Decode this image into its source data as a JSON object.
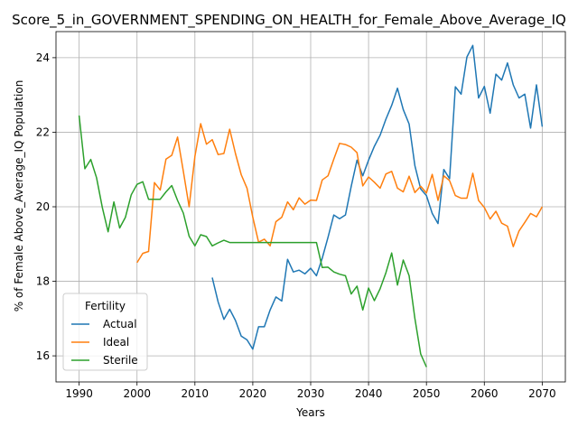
{
  "chart_data": {
    "type": "line",
    "title": "Score_5_in_GOVERNMENT_SPENDING_ON_HEALTH_for_Female_Above_Average_IQ",
    "xlabel": "Years",
    "ylabel": "% of Female Above_Average_IQ Population",
    "xlim": [
      1986,
      2074
    ],
    "ylim": [
      15.3,
      24.7
    ],
    "xticks": [
      1990,
      2000,
      2010,
      2020,
      2030,
      2040,
      2050,
      2060,
      2070
    ],
    "yticks": [
      16,
      18,
      20,
      22,
      24
    ],
    "grid": true,
    "legend": {
      "title": "Fertility",
      "position": "lower left"
    },
    "series": [
      {
        "name": "Actual",
        "color": "#1f77b4",
        "x": [
          2013,
          2014,
          2015,
          2016,
          2017,
          2018,
          2019,
          2020,
          2021,
          2022,
          2023,
          2024,
          2025,
          2026,
          2027,
          2028,
          2029,
          2030,
          2031,
          2032,
          2033,
          2034,
          2035,
          2036,
          2037,
          2038,
          2039,
          2040,
          2041,
          2042,
          2043,
          2044,
          2045,
          2046,
          2047,
          2048,
          2049,
          2050,
          2051,
          2052,
          2053,
          2054,
          2055,
          2056,
          2057,
          2058,
          2059,
          2060,
          2061,
          2062,
          2063,
          2064,
          2065,
          2066,
          2067,
          2068,
          2069,
          2070
        ],
        "y": [
          18.1,
          17.45,
          16.98,
          17.25,
          16.95,
          16.53,
          16.43,
          16.18,
          16.78,
          16.78,
          17.23,
          17.58,
          17.47,
          18.59,
          18.25,
          18.3,
          18.2,
          18.35,
          18.15,
          18.62,
          19.18,
          19.78,
          19.68,
          19.78,
          20.55,
          21.25,
          20.83,
          21.25,
          21.62,
          21.92,
          22.35,
          22.72,
          23.18,
          22.61,
          22.22,
          21.1,
          20.48,
          20.3,
          19.82,
          19.55,
          21.0,
          20.75,
          23.22,
          23.02,
          24.02,
          24.33,
          22.92,
          23.23,
          22.51,
          23.56,
          23.4,
          23.86,
          23.27,
          22.92,
          23.02,
          22.11,
          23.27,
          22.15
        ]
      },
      {
        "name": "Ideal",
        "color": "#ff7f0e",
        "x": [
          2000,
          2001,
          2002,
          2003,
          2004,
          2005,
          2006,
          2007,
          2008,
          2009,
          2010,
          2011,
          2012,
          2013,
          2014,
          2015,
          2016,
          2017,
          2018,
          2019,
          2020,
          2021,
          2022,
          2023,
          2024,
          2025,
          2026,
          2027,
          2028,
          2029,
          2030,
          2031,
          2032,
          2033,
          2034,
          2035,
          2036,
          2037,
          2038,
          2039,
          2040,
          2041,
          2042,
          2043,
          2044,
          2045,
          2046,
          2047,
          2048,
          2049,
          2050,
          2051,
          2052,
          2053,
          2054,
          2055,
          2056,
          2057,
          2058,
          2059,
          2060,
          2061,
          2062,
          2063,
          2064,
          2065,
          2066,
          2067,
          2068,
          2069,
          2070
        ],
        "y": [
          18.5,
          18.75,
          18.8,
          20.65,
          20.45,
          21.28,
          21.38,
          21.87,
          20.95,
          20.0,
          21.35,
          22.23,
          21.68,
          21.8,
          21.4,
          21.43,
          22.08,
          21.43,
          20.86,
          20.5,
          19.72,
          19.05,
          19.13,
          18.95,
          19.6,
          19.72,
          20.13,
          19.92,
          20.24,
          20.07,
          20.18,
          20.17,
          20.72,
          20.83,
          21.28,
          21.7,
          21.67,
          21.6,
          21.45,
          20.56,
          20.8,
          20.66,
          20.5,
          20.88,
          20.95,
          20.5,
          20.4,
          20.82,
          20.38,
          20.55,
          20.37,
          20.87,
          20.17,
          20.83,
          20.7,
          20.3,
          20.23,
          20.23,
          20.9,
          20.17,
          19.98,
          19.67,
          19.88,
          19.56,
          19.48,
          18.93,
          19.35,
          19.58,
          19.82,
          19.73,
          20.0
        ]
      },
      {
        "name": "Sterile",
        "color": "#2ca02c",
        "x": [
          1990,
          1991,
          1992,
          1993,
          1994,
          1995,
          1996,
          1997,
          1998,
          1999,
          2000,
          2001,
          2002,
          2003,
          2004,
          2005,
          2006,
          2007,
          2008,
          2009,
          2010,
          2011,
          2012,
          2013,
          2014,
          2015,
          2016,
          2017,
          2018,
          2019,
          2020,
          2021,
          2022,
          2023,
          2024,
          2025,
          2026,
          2027,
          2028,
          2029,
          2030,
          2031,
          2032,
          2033,
          2034,
          2035,
          2036,
          2037,
          2038,
          2039,
          2040,
          2041,
          2042,
          2043,
          2044,
          2045,
          2046,
          2047,
          2048,
          2049,
          2050
        ],
        "y": [
          22.45,
          21.02,
          21.27,
          20.78,
          19.98,
          19.33,
          20.13,
          19.43,
          19.72,
          20.32,
          20.6,
          20.67,
          20.2,
          20.2,
          20.2,
          20.4,
          20.57,
          20.17,
          19.83,
          19.21,
          18.95,
          19.25,
          19.2,
          18.95,
          19.03,
          19.1,
          19.04,
          19.04,
          19.04,
          19.04,
          19.04,
          19.04,
          19.04,
          19.04,
          19.04,
          19.04,
          19.04,
          19.04,
          19.04,
          19.04,
          19.04,
          19.04,
          18.37,
          18.38,
          18.25,
          18.19,
          18.15,
          17.66,
          17.87,
          17.23,
          17.82,
          17.48,
          17.8,
          18.23,
          18.76,
          17.9,
          18.57,
          18.15,
          17.0,
          16.05,
          15.7
        ]
      }
    ]
  }
}
